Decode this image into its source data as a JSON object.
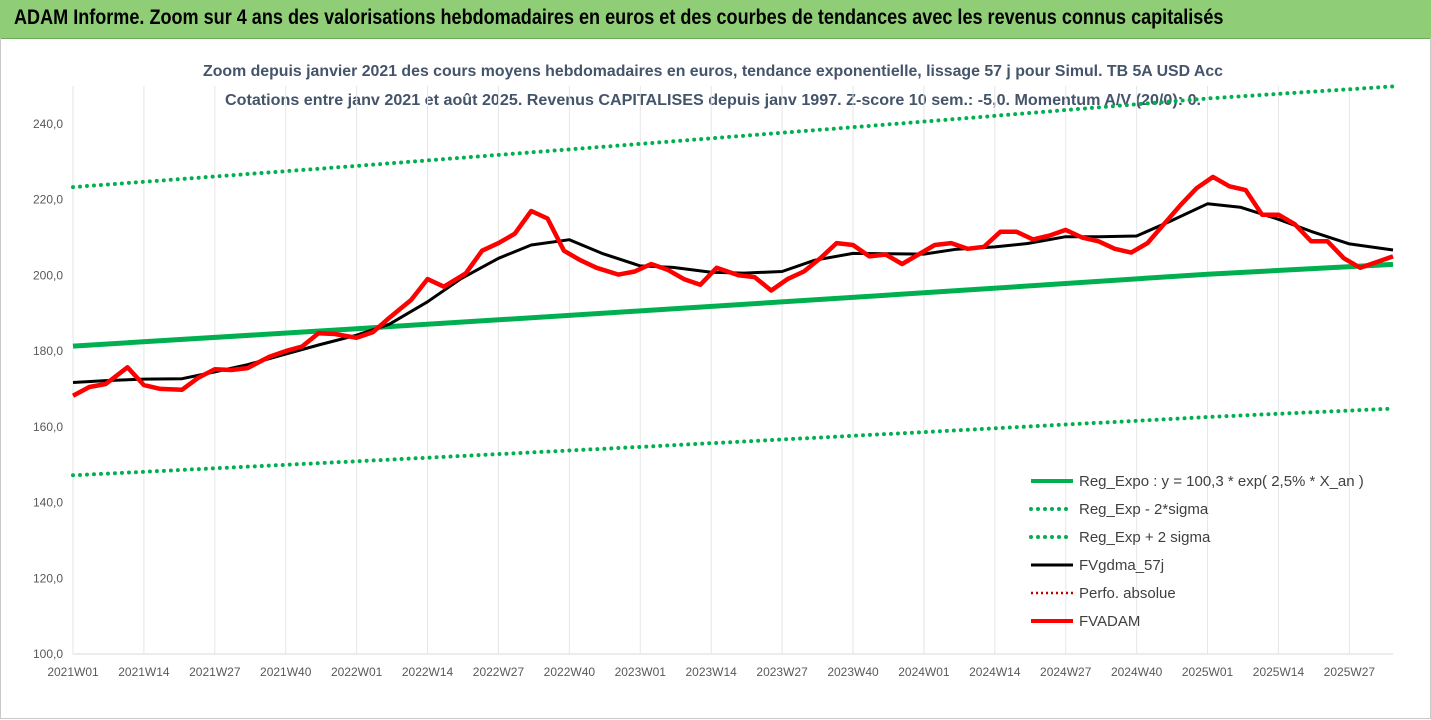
{
  "header": {
    "title": "ADAM Informe. Zoom sur 4 ans des valorisations hebdomadaires en euros et des courbes de tendances avec les revenus connus capitalisés",
    "background": "#8fce76"
  },
  "chart_data": {
    "type": "line",
    "title": "Zoom depuis janvier 2021 des cours moyens hebdomadaires en euros, tendance exponentielle, lissage 57 j pour Simul. TB 5A USD Acc",
    "subtitle": "Cotations entre janv 2021 et août 2025. Revenus CAPITALISES depuis janv 1997. Z-score 10 sem.: -5,0. Momentum A/V (20/0): 0.",
    "x_tick_labels": [
      "2021W01",
      "2021W14",
      "2021W27",
      "2021W40",
      "2022W01",
      "2022W14",
      "2022W27",
      "2022W40",
      "2023W01",
      "2023W14",
      "2023W27",
      "2023W40",
      "2024W01",
      "2024W14",
      "2024W27",
      "2024W40",
      "2025W01",
      "2025W14",
      "2025W27"
    ],
    "y_tick_labels": [
      "100,0",
      "120,0",
      "140,0",
      "160,0",
      "180,0",
      "200,0",
      "220,0",
      "240,0"
    ],
    "ylim": [
      100,
      250
    ],
    "x_range_weeks": [
      0,
      242
    ],
    "grid": "vertical",
    "legend_position": "bottom-right",
    "series": [
      {
        "name": "Reg_Expo : y = 100,3 * exp( 2,5% *  X_an )",
        "color": "#00b050",
        "style": "solid",
        "x": [
          0,
          52,
          104,
          156,
          208,
          242
        ],
        "y": [
          181.3,
          185.9,
          190.6,
          195.4,
          200.3,
          202.9
        ]
      },
      {
        "name": "Reg_Exp - 2*sigma",
        "color": "#00b050",
        "style": "dotted",
        "x": [
          0,
          52,
          104,
          156,
          208,
          242
        ],
        "y": [
          147.2,
          150.9,
          154.7,
          158.6,
          162.6,
          164.8
        ]
      },
      {
        "name": "Reg_Exp + 2 sigma",
        "color": "#00b050",
        "style": "dotted",
        "x": [
          0,
          52,
          104,
          156,
          208,
          242
        ],
        "y": [
          223.3,
          228.9,
          234.7,
          240.6,
          246.7,
          249.9
        ]
      },
      {
        "name": "FVgdma_57j",
        "color": "#000000",
        "style": "solid",
        "x": [
          0,
          6,
          13,
          20,
          26,
          32,
          39,
          45,
          52,
          58,
          65,
          71,
          78,
          84,
          91,
          97,
          104,
          110,
          117,
          123,
          130,
          136,
          143,
          149,
          156,
          162,
          169,
          175,
          182,
          188,
          195,
          201,
          208,
          214,
          221,
          227,
          234,
          242
        ],
        "y": [
          171.7,
          172.2,
          172.6,
          172.7,
          174.5,
          176.4,
          179.2,
          181.6,
          184.2,
          187.1,
          193,
          199,
          204.5,
          208,
          209.4,
          205.8,
          202.5,
          202.1,
          200.8,
          200.6,
          201,
          204,
          205.8,
          205.7,
          205.6,
          206.9,
          207.5,
          208.4,
          210.2,
          210.2,
          210.4,
          214.2,
          218.9,
          218,
          214.8,
          211.6,
          208.3,
          206.7
        ]
      },
      {
        "name": "Perfo. absolue",
        "color": "#c00000",
        "style": "dotted",
        "x": [],
        "y": []
      },
      {
        "name": "FVADAM",
        "color": "#ff0000",
        "style": "solid",
        "x": [
          0,
          3,
          6,
          10,
          13,
          16,
          20,
          23,
          26,
          29,
          32,
          36,
          39,
          42,
          45,
          48,
          52,
          55,
          58,
          62,
          65,
          68,
          72,
          75,
          78,
          81,
          84,
          87,
          90,
          93,
          96,
          100,
          103,
          106,
          109,
          112,
          115,
          118,
          122,
          125,
          128,
          131,
          134,
          137,
          140,
          143,
          146,
          149,
          152,
          155,
          158,
          161,
          164,
          167,
          170,
          173,
          176,
          179,
          182,
          185,
          188,
          191,
          194,
          197,
          200,
          203,
          206,
          209,
          212,
          215,
          218,
          221,
          224,
          227,
          230,
          233,
          236,
          239,
          242
        ],
        "y": [
          168.2,
          170.5,
          171.3,
          175.7,
          171,
          170,
          169.8,
          173,
          175.2,
          175,
          175.5,
          178.5,
          180,
          181.2,
          184.7,
          184.5,
          183.5,
          185,
          188.8,
          193.5,
          199,
          197,
          200.5,
          206.5,
          208.5,
          211,
          217,
          215,
          206.5,
          204,
          202,
          200.2,
          201,
          203,
          201.5,
          199,
          197.5,
          202,
          200,
          199.5,
          196,
          199,
          201,
          204.5,
          208.5,
          208,
          205,
          205.5,
          203,
          205.5,
          208,
          208.5,
          207,
          207.5,
          211.5,
          211.5,
          209.5,
          210.5,
          212,
          210,
          209,
          207,
          206,
          208.5,
          213.5,
          218.5,
          223,
          226,
          223.5,
          222.5,
          216,
          216,
          213.5,
          209,
          209,
          204.5,
          202,
          203.5,
          205
        ]
      }
    ]
  }
}
